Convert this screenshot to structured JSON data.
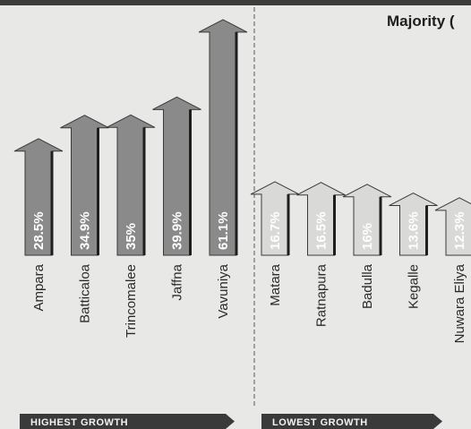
{
  "chart_title": "Majority (",
  "chart_data": {
    "type": "bar",
    "title": "Majority (",
    "groups": [
      {
        "label": "HIGHEST GROWTH",
        "categories": [
          "Ampara",
          "Batticaloa",
          "Trincomalee",
          "Jaffna",
          "Vavuniya"
        ],
        "value_labels": [
          "28.5%",
          "34.9%",
          "35%",
          "39.9%",
          "61.1%"
        ],
        "values": [
          28.5,
          34.9,
          35,
          39.9,
          61.1
        ]
      },
      {
        "label": "LOWEST GROWTH",
        "categories": [
          "Matara",
          "Ratnapura",
          "Badulla",
          "Kegalle",
          "Nuwara Eliya"
        ],
        "value_labels": [
          "16.7%",
          "16.5%",
          "16%",
          "13.6%",
          "12.3%"
        ],
        "values": [
          16.7,
          16.5,
          16,
          13.6,
          12.3
        ]
      }
    ],
    "colors": {
      "highest_bar": "#8a8a8a",
      "lowest_bar": "#d9d9d7",
      "banner": "#3a3a3a",
      "divider": "#555555"
    }
  }
}
